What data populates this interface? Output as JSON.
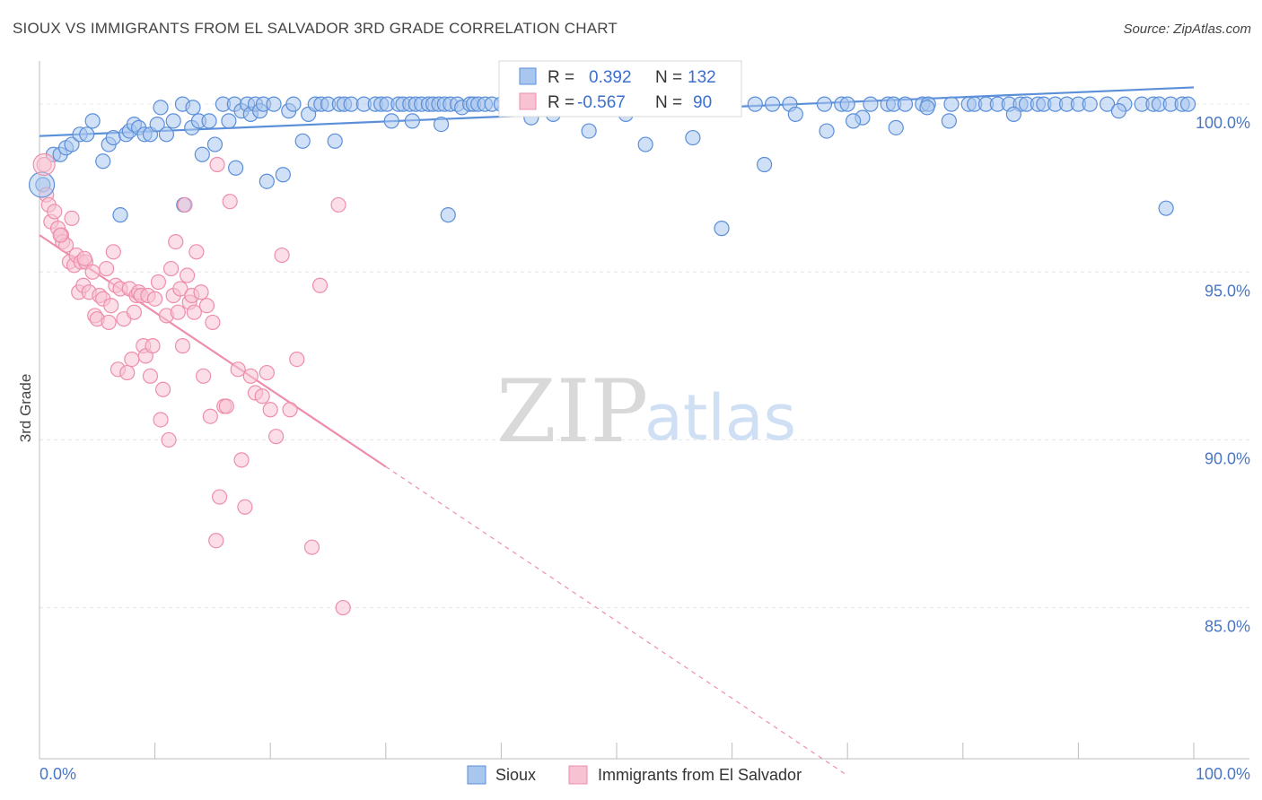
{
  "header": {
    "title": "SIOUX VS IMMIGRANTS FROM EL SALVADOR 3RD GRADE CORRELATION CHART",
    "source": "Source: ZipAtlas.com"
  },
  "watermark": {
    "zip": "ZIP",
    "atlas": "atlas"
  },
  "legend": {
    "rows": [
      {
        "r_label": "R =",
        "r_value": "0.392",
        "n_label": "N =",
        "n_value": "132",
        "color": "#5b8fd9"
      },
      {
        "r_label": "R =",
        "r_value": "-0.567",
        "n_label": "N =",
        "n_value": "90",
        "color": "#ee8eaa"
      }
    ]
  },
  "chart_data": {
    "type": "scatter",
    "xlabel": "",
    "ylabel": "3rd Grade",
    "xlim": [
      0,
      100
    ],
    "ylim": [
      80.5,
      101.5
    ],
    "x_tick_labels": [
      "0.0%",
      "100.0%"
    ],
    "y_ticks": [
      {
        "value": 100,
        "label": "100.0%"
      },
      {
        "value": 95,
        "label": "95.0%"
      },
      {
        "value": 90,
        "label": "90.0%"
      },
      {
        "value": 85,
        "label": "85.0%"
      }
    ],
    "grid": true,
    "legend_placement": "top-center",
    "series": [
      {
        "name": "Sioux",
        "color": "#5b8fd9",
        "fill": "#a9c6ee",
        "trend": {
          "x": [
            0,
            100
          ],
          "y": [
            99.05,
            100.5
          ],
          "style": "solid"
        },
        "points": [
          [
            0.3,
            97.6
          ],
          [
            1.2,
            98.5
          ],
          [
            1.8,
            98.5
          ],
          [
            2.3,
            98.7
          ],
          [
            2.8,
            98.8
          ],
          [
            3.5,
            99.1
          ],
          [
            4.1,
            99.1
          ],
          [
            4.6,
            99.5
          ],
          [
            5.5,
            98.3
          ],
          [
            6.0,
            98.8
          ],
          [
            6.4,
            99.0
          ],
          [
            7.0,
            96.7
          ],
          [
            7.5,
            99.1
          ],
          [
            7.8,
            99.2
          ],
          [
            8.2,
            99.4
          ],
          [
            8.6,
            99.3
          ],
          [
            9.1,
            99.1
          ],
          [
            9.6,
            99.1
          ],
          [
            10.2,
            99.4
          ],
          [
            10.5,
            99.9
          ],
          [
            11.0,
            99.1
          ],
          [
            11.6,
            99.5
          ],
          [
            12.4,
            100.0
          ],
          [
            12.5,
            97.0
          ],
          [
            13.2,
            99.3
          ],
          [
            13.3,
            99.9
          ],
          [
            13.8,
            99.5
          ],
          [
            14.1,
            98.5
          ],
          [
            14.7,
            99.5
          ],
          [
            15.2,
            98.8
          ],
          [
            15.9,
            100.0
          ],
          [
            16.4,
            99.5
          ],
          [
            16.9,
            100.0
          ],
          [
            17.0,
            98.1
          ],
          [
            17.5,
            99.8
          ],
          [
            18.0,
            100.0
          ],
          [
            18.3,
            99.7
          ],
          [
            18.7,
            100.0
          ],
          [
            19.1,
            99.8
          ],
          [
            19.4,
            100.0
          ],
          [
            19.7,
            97.7
          ],
          [
            20.3,
            100.0
          ],
          [
            21.1,
            97.9
          ],
          [
            21.6,
            99.8
          ],
          [
            22.0,
            100.0
          ],
          [
            22.8,
            98.9
          ],
          [
            23.3,
            99.7
          ],
          [
            23.9,
            100.0
          ],
          [
            24.4,
            100.0
          ],
          [
            25.0,
            100.0
          ],
          [
            25.6,
            98.9
          ],
          [
            26.0,
            100.0
          ],
          [
            26.4,
            100.0
          ],
          [
            27.0,
            100.0
          ],
          [
            28.1,
            100.0
          ],
          [
            29.1,
            100.0
          ],
          [
            29.6,
            100.0
          ],
          [
            30.1,
            100.0
          ],
          [
            31.1,
            100.0
          ],
          [
            31.5,
            100.0
          ],
          [
            32.1,
            100.0
          ],
          [
            32.6,
            100.0
          ],
          [
            33.1,
            100.0
          ],
          [
            33.7,
            100.0
          ],
          [
            34.1,
            100.0
          ],
          [
            34.6,
            100.0
          ],
          [
            35.1,
            100.0
          ],
          [
            35.6,
            100.0
          ],
          [
            36.2,
            100.0
          ],
          [
            36.6,
            99.9
          ],
          [
            37.3,
            100.0
          ],
          [
            37.6,
            100.0
          ],
          [
            38.0,
            100.0
          ],
          [
            38.6,
            100.0
          ],
          [
            39.2,
            100.0
          ],
          [
            40.0,
            100.0
          ],
          [
            40.5,
            99.9
          ],
          [
            41.2,
            100.0
          ],
          [
            41.7,
            99.9
          ],
          [
            42.6,
            100.0
          ],
          [
            43.3,
            100.0
          ],
          [
            44.0,
            100.0
          ],
          [
            44.5,
            99.7
          ],
          [
            45.5,
            100.0
          ],
          [
            46.5,
            100.0
          ],
          [
            47.5,
            100.0
          ],
          [
            48.5,
            100.0
          ],
          [
            49.5,
            100.0
          ],
          [
            50.5,
            100.0
          ],
          [
            52.5,
            98.8
          ],
          [
            55.0,
            100.0
          ],
          [
            57.0,
            100.0
          ],
          [
            60.0,
            100.0
          ],
          [
            62.0,
            100.0
          ],
          [
            63.5,
            100.0
          ],
          [
            65.0,
            100.0
          ],
          [
            68.0,
            100.0
          ],
          [
            69.5,
            100.0
          ],
          [
            70.0,
            100.0
          ],
          [
            72.0,
            100.0
          ],
          [
            73.5,
            100.0
          ],
          [
            74.0,
            100.0
          ],
          [
            75.0,
            100.0
          ],
          [
            76.5,
            100.0
          ],
          [
            77.0,
            100.0
          ],
          [
            79.0,
            100.0
          ],
          [
            80.5,
            100.0
          ],
          [
            81.0,
            100.0
          ],
          [
            82.0,
            100.0
          ],
          [
            83.0,
            100.0
          ],
          [
            84.0,
            100.0
          ],
          [
            85.0,
            100.0
          ],
          [
            85.5,
            100.0
          ],
          [
            86.5,
            100.0
          ],
          [
            87.0,
            100.0
          ],
          [
            88.0,
            100.0
          ],
          [
            89.0,
            100.0
          ],
          [
            90.0,
            100.0
          ],
          [
            91.0,
            100.0
          ],
          [
            92.5,
            100.0
          ],
          [
            94.0,
            100.0
          ],
          [
            95.5,
            100.0
          ],
          [
            96.5,
            100.0
          ],
          [
            97.0,
            100.0
          ],
          [
            98.0,
            100.0
          ],
          [
            99.0,
            100.0
          ],
          [
            99.5,
            100.0
          ],
          [
            30.5,
            99.5
          ],
          [
            34.8,
            99.4
          ],
          [
            42.6,
            99.6
          ],
          [
            47.6,
            99.2
          ],
          [
            50.8,
            99.7
          ],
          [
            53.2,
            100.0
          ],
          [
            62.8,
            98.2
          ],
          [
            65.5,
            99.7
          ],
          [
            71.3,
            99.6
          ],
          [
            74.2,
            99.3
          ],
          [
            76.9,
            99.9
          ],
          [
            78.8,
            99.5
          ],
          [
            84.4,
            99.7
          ],
          [
            93.5,
            99.8
          ],
          [
            97.6,
            96.9
          ],
          [
            32.3,
            99.5
          ],
          [
            35.4,
            96.7
          ],
          [
            59.1,
            96.3
          ],
          [
            68.2,
            99.2
          ],
          [
            56.6,
            99.0
          ],
          [
            70.5,
            99.5
          ]
        ]
      },
      {
        "name": "Immigrants from El Salvador",
        "color": "#ee8eaa",
        "fill": "#f7c3d3",
        "trend": {
          "x": [
            0,
            30
          ],
          "y": [
            96.1,
            89.2
          ],
          "style": "solid"
        },
        "trend_extension": {
          "x": [
            30,
            70
          ],
          "y": [
            89.2,
            80.0
          ],
          "style": "dashed"
        },
        "points": [
          [
            0.4,
            98.2
          ],
          [
            0.6,
            97.3
          ],
          [
            0.8,
            97.0
          ],
          [
            1.0,
            96.5
          ],
          [
            1.3,
            96.8
          ],
          [
            1.6,
            96.3
          ],
          [
            1.9,
            96.1
          ],
          [
            2.0,
            95.9
          ],
          [
            2.3,
            95.8
          ],
          [
            2.6,
            95.3
          ],
          [
            2.8,
            96.6
          ],
          [
            3.0,
            95.2
          ],
          [
            3.2,
            95.5
          ],
          [
            3.4,
            94.4
          ],
          [
            3.6,
            95.3
          ],
          [
            3.8,
            94.6
          ],
          [
            4.0,
            95.3
          ],
          [
            4.3,
            94.4
          ],
          [
            4.6,
            95.0
          ],
          [
            4.8,
            93.7
          ],
          [
            5.0,
            93.6
          ],
          [
            5.2,
            94.3
          ],
          [
            5.5,
            94.2
          ],
          [
            5.8,
            95.1
          ],
          [
            6.0,
            93.5
          ],
          [
            6.2,
            94.0
          ],
          [
            6.4,
            95.6
          ],
          [
            6.6,
            94.6
          ],
          [
            6.8,
            92.1
          ],
          [
            7.0,
            94.5
          ],
          [
            7.3,
            93.6
          ],
          [
            7.6,
            92.0
          ],
          [
            7.8,
            94.5
          ],
          [
            8.0,
            92.4
          ],
          [
            8.2,
            93.8
          ],
          [
            8.4,
            94.3
          ],
          [
            8.6,
            94.4
          ],
          [
            8.8,
            94.3
          ],
          [
            9.0,
            92.8
          ],
          [
            9.2,
            92.5
          ],
          [
            9.4,
            94.3
          ],
          [
            9.6,
            91.9
          ],
          [
            9.8,
            92.8
          ],
          [
            10.0,
            94.2
          ],
          [
            10.3,
            94.7
          ],
          [
            10.5,
            90.6
          ],
          [
            10.7,
            91.5
          ],
          [
            11.0,
            93.7
          ],
          [
            11.2,
            90.0
          ],
          [
            11.4,
            95.1
          ],
          [
            11.6,
            94.3
          ],
          [
            11.8,
            95.9
          ],
          [
            12.0,
            93.8
          ],
          [
            12.2,
            94.5
          ],
          [
            12.4,
            92.8
          ],
          [
            12.6,
            97.0
          ],
          [
            12.8,
            94.9
          ],
          [
            13.0,
            94.1
          ],
          [
            13.2,
            94.3
          ],
          [
            13.4,
            93.8
          ],
          [
            13.6,
            95.6
          ],
          [
            14.0,
            94.4
          ],
          [
            14.2,
            91.9
          ],
          [
            14.5,
            94.0
          ],
          [
            14.8,
            90.7
          ],
          [
            15.0,
            93.5
          ],
          [
            15.4,
            98.2
          ],
          [
            15.6,
            88.3
          ],
          [
            16.0,
            91.0
          ],
          [
            16.2,
            91.0
          ],
          [
            16.5,
            97.1
          ],
          [
            17.2,
            92.1
          ],
          [
            17.5,
            89.4
          ],
          [
            17.8,
            88.0
          ],
          [
            18.3,
            91.9
          ],
          [
            18.7,
            91.4
          ],
          [
            19.3,
            91.3
          ],
          [
            19.7,
            92.0
          ],
          [
            20.0,
            90.9
          ],
          [
            20.5,
            90.1
          ],
          [
            21.0,
            95.5
          ],
          [
            21.7,
            90.9
          ],
          [
            22.3,
            92.4
          ],
          [
            23.6,
            86.8
          ],
          [
            24.3,
            94.6
          ],
          [
            25.9,
            97.0
          ],
          [
            26.3,
            85.0
          ],
          [
            15.3,
            87.0
          ],
          [
            1.8,
            96.1
          ],
          [
            3.9,
            95.4
          ]
        ]
      }
    ]
  },
  "bottom_legend": {
    "items": [
      {
        "label": "Sioux",
        "color": "#5b8fd9",
        "fill": "#a9c6ee"
      },
      {
        "label": "Immigrants from El Salvador",
        "color": "#ee8eaa",
        "fill": "#f7c3d3"
      }
    ]
  }
}
